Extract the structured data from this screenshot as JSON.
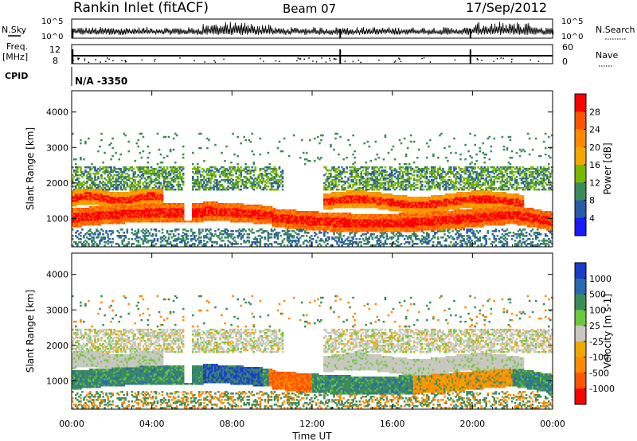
{
  "header": {
    "site_title": "Rankin Inlet (fitACF)",
    "beam": "Beam 07",
    "date": "17/Sep/2012"
  },
  "top_panels": {
    "nsky_label": "N.Sky",
    "nsky_ticks": [
      "10^5",
      "10^0"
    ],
    "nsearch_label": "N.Search",
    "nsearch_ticks": [
      "10^5",
      "10^0"
    ],
    "freq_label_1": "Freq.",
    "freq_label_2": "[MHz]",
    "freq_ticks": [
      "12",
      "8"
    ],
    "nave_label": "Nave",
    "nave_ticks": [
      "60",
      "0"
    ],
    "cpid_label": "CPID",
    "cpid_value": "N/A -3350"
  },
  "chart_data": [
    {
      "type": "heatmap",
      "panel": "power",
      "ylabel": "Slant Range [km]",
      "yticks": [
        1000,
        2000,
        3000,
        4000
      ],
      "ylim": [
        200,
        4600
      ],
      "xticks": [
        "00:00",
        "04:00",
        "08:00",
        "12:00",
        "16:00",
        "20:00",
        "00:00"
      ],
      "xlim_hours": [
        0,
        24
      ],
      "colorbar": {
        "label": "Power [dB]",
        "ticks": [
          "28",
          "24",
          "20",
          "16",
          "12",
          "8",
          "4"
        ],
        "colors": [
          "#ff0000",
          "#ff5500",
          "#ff8a00",
          "#f0a800",
          "#7ab800",
          "#3c8c5a",
          "#2a5aa8",
          "#1a1aff"
        ]
      },
      "bands": [
        {
          "km_lo": 700,
          "km_hi": 1250,
          "value": "28",
          "note": "main near-range echo band 00-24 UT"
        },
        {
          "km_lo": 1250,
          "km_hi": 1800,
          "value": "24",
          "note": "second band 00-04 UT and 13-22 UT"
        },
        {
          "km_lo": 1800,
          "km_hi": 2400,
          "value": "12",
          "note": "weak upper band"
        }
      ]
    },
    {
      "type": "heatmap",
      "panel": "velocity",
      "ylabel": "Slant Range [km]",
      "yticks": [
        1000,
        2000,
        3000,
        4000
      ],
      "ylim": [
        200,
        4600
      ],
      "xticks": [
        "00:00",
        "04:00",
        "08:00",
        "12:00",
        "16:00",
        "20:00",
        "00:00"
      ],
      "xlabel": "Time UT",
      "colorbar": {
        "label": "Velocity [m s-1]",
        "ticks": [
          "1000",
          "500",
          "100",
          "25",
          "-25",
          "-100",
          "-500",
          "-1000"
        ],
        "colors": [
          "#1a3cc8",
          "#2a6ab0",
          "#3c8c5a",
          "#6cc83c",
          "#c8c8c0",
          "#f0a800",
          "#ff8a00",
          "#ff5500",
          "#ff0000"
        ]
      }
    }
  ],
  "colors": {
    "ground_scatter": "#c8c8c0"
  }
}
